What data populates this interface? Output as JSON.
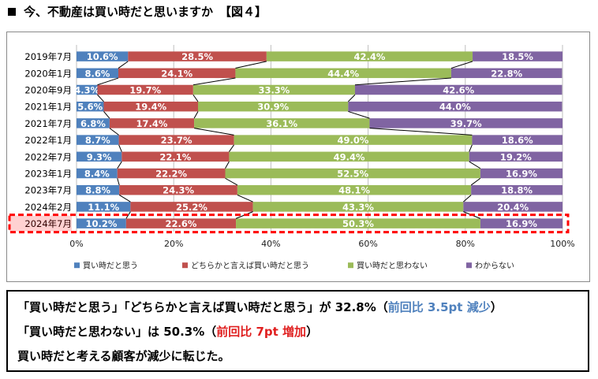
{
  "heading": {
    "marker": "■",
    "title": "今、不動産は買い時だと思いますか",
    "figure_label": "【図４】"
  },
  "chart_data": {
    "type": "bar",
    "orientation": "horizontal",
    "stacked": "percent",
    "categories": [
      "2019年7月",
      "2020年1月",
      "2020年9月",
      "2021年1月",
      "2021年7月",
      "2022年1月",
      "2022年7月",
      "2023年1月",
      "2023年7月",
      "2024年2月",
      "2024年7月"
    ],
    "series": [
      {
        "name": "買い時だと思う",
        "color": "#4f81bd",
        "values": [
          10.6,
          8.6,
          4.3,
          5.6,
          6.8,
          8.7,
          9.3,
          8.4,
          8.8,
          11.1,
          10.2
        ]
      },
      {
        "name": "どちらかと言えば買い時だと思う",
        "color": "#c0504d",
        "values": [
          28.5,
          24.1,
          19.7,
          19.4,
          17.4,
          23.7,
          22.1,
          22.2,
          24.3,
          25.2,
          22.6
        ]
      },
      {
        "name": "買い時だと思わない",
        "color": "#9bbb59",
        "values": [
          42.4,
          44.4,
          33.3,
          30.9,
          36.1,
          49.0,
          49.4,
          52.5,
          48.1,
          43.3,
          50.3
        ]
      },
      {
        "name": "わからない",
        "color": "#8064a2",
        "values": [
          18.5,
          22.8,
          42.6,
          44.0,
          39.7,
          18.6,
          19.2,
          16.9,
          18.8,
          20.4,
          16.9
        ]
      }
    ],
    "xlim": [
      0,
      100
    ],
    "xticks": [
      "0%",
      "20%",
      "40%",
      "60%",
      "80%",
      "100%"
    ],
    "grid": true,
    "legend": "bottom",
    "highlighted_category": "2024年7月",
    "highlight_color": "#ff0000"
  },
  "summary": {
    "line1_part1": "「買い時だと思う」「どちらかと言えば買い時だと思う」が 32.8%（",
    "line1_accent": "前回比 3.5pt 減少",
    "line1_end": "）",
    "line2_part1": "「買い時だと思わない」は 50.3%（",
    "line2_accent": "前回比 7pt 増加",
    "line2_end": "）",
    "line3": "買い時だと考える顧客が減少に転じた。"
  }
}
